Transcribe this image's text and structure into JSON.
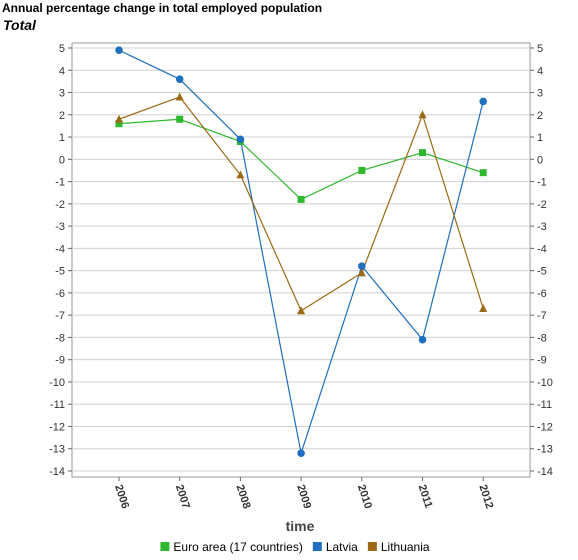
{
  "header": {
    "title": "Annual percentage change in total employed population",
    "subtitle": "Total"
  },
  "chart_data": {
    "type": "line",
    "title": "Annual percentage change in total employed population",
    "subtitle": "Total",
    "xlabel": "time",
    "ylabel": "",
    "categories": [
      "2006",
      "2007",
      "2008",
      "2009",
      "2010",
      "2011",
      "2012"
    ],
    "ylim": [
      -14,
      5.5
    ],
    "yticks": [
      5,
      4,
      3,
      2,
      1,
      0,
      -1,
      -2,
      -3,
      -4,
      -5,
      -6,
      -7,
      -8,
      -9,
      -10,
      -11,
      -12,
      -13,
      -14
    ],
    "grid": true,
    "legend_position": "bottom",
    "series": [
      {
        "name": "Euro area (17 countries)",
        "color": "#2eb82e",
        "marker": "square",
        "values": [
          1.6,
          1.8,
          0.8,
          -1.8,
          -0.5,
          0.3,
          -0.6
        ]
      },
      {
        "name": "Latvia",
        "color": "#1f6fbf",
        "marker": "circle",
        "values": [
          4.9,
          3.6,
          0.9,
          -13.2,
          -4.8,
          -8.1,
          2.6
        ]
      },
      {
        "name": "Lithuania",
        "color": "#9a6a14",
        "marker": "triangle",
        "values": [
          1.8,
          2.8,
          -0.7,
          -6.8,
          -5.1,
          2.0,
          -6.7
        ]
      }
    ]
  }
}
